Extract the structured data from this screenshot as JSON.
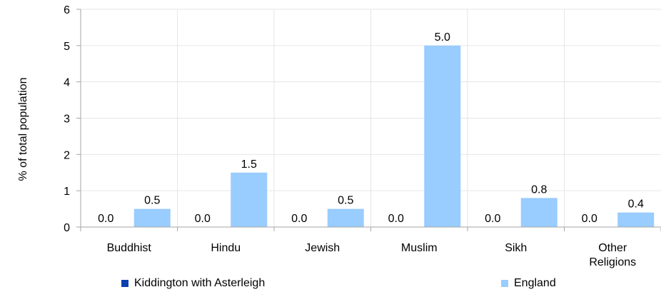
{
  "chart_data": {
    "type": "bar",
    "categories": [
      "Buddhist",
      "Hindu",
      "Jewish",
      "Muslim",
      "Sikh",
      "Other Religions"
    ],
    "category_lines": [
      [
        "Buddhist"
      ],
      [
        "Hindu"
      ],
      [
        "Jewish"
      ],
      [
        "Muslim"
      ],
      [
        "Sikh"
      ],
      [
        "Other",
        "Religions"
      ]
    ],
    "series": [
      {
        "name": "Kiddington with Asterleigh",
        "color": "#0b3fae",
        "values": [
          0.0,
          0.0,
          0.0,
          0.0,
          0.0,
          0.0
        ],
        "labels": [
          "0.0",
          "0.0",
          "0.0",
          "0.0",
          "0.0",
          "0.0"
        ]
      },
      {
        "name": "England",
        "color": "#99ccff",
        "values": [
          0.5,
          1.5,
          0.5,
          5.0,
          0.8,
          0.4
        ],
        "labels": [
          "0.5",
          "1.5",
          "0.5",
          "5.0",
          "0.8",
          "0.4"
        ]
      }
    ],
    "ylabel": "% of total population",
    "ylim": [
      0,
      6
    ],
    "yticks": [
      "0",
      "1",
      "2",
      "3",
      "4",
      "5",
      "6"
    ],
    "grid": true,
    "legend_position": "bottom"
  }
}
